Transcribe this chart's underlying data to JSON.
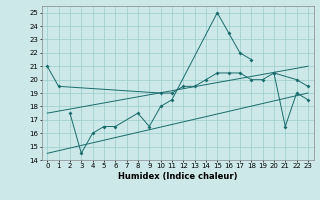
{
  "xlabel": "Humidex (Indice chaleur)",
  "line1_x": [
    0,
    1,
    10,
    11,
    12,
    13,
    14,
    15,
    16,
    17,
    18,
    19,
    20,
    22,
    23
  ],
  "line1_y": [
    21.0,
    19.5,
    19.0,
    19.0,
    19.5,
    19.5,
    20.0,
    20.5,
    20.5,
    20.5,
    20.0,
    20.0,
    20.5,
    20.0,
    19.5
  ],
  "line2_x": [
    2,
    3,
    4,
    5,
    6,
    8,
    9,
    10,
    11,
    15,
    16,
    17,
    18
  ],
  "line2_y": [
    17.5,
    14.5,
    16.0,
    16.5,
    16.5,
    17.5,
    16.5,
    18.0,
    18.5,
    25.0,
    23.5,
    22.0,
    21.5
  ],
  "line3_x": [
    20,
    21,
    22,
    23
  ],
  "line3_y": [
    20.5,
    16.5,
    19.0,
    18.5
  ],
  "trendline1_x": [
    0,
    23
  ],
  "trendline1_y": [
    17.5,
    21.0
  ],
  "trendline2_x": [
    0,
    23
  ],
  "trendline2_y": [
    14.5,
    19.0
  ],
  "ylim": [
    14,
    25.5
  ],
  "xlim": [
    -0.5,
    23.5
  ],
  "yticks": [
    14,
    15,
    16,
    17,
    18,
    19,
    20,
    21,
    22,
    23,
    24,
    25
  ],
  "xticks": [
    0,
    1,
    2,
    3,
    4,
    5,
    6,
    7,
    8,
    9,
    10,
    11,
    12,
    13,
    14,
    15,
    16,
    17,
    18,
    19,
    20,
    21,
    22,
    23
  ],
  "line_color": "#1a6b6b",
  "bg_color": "#cce8e8",
  "grid_color": "#99cccc",
  "tick_fontsize": 5.0,
  "xlabel_fontsize": 6.0
}
